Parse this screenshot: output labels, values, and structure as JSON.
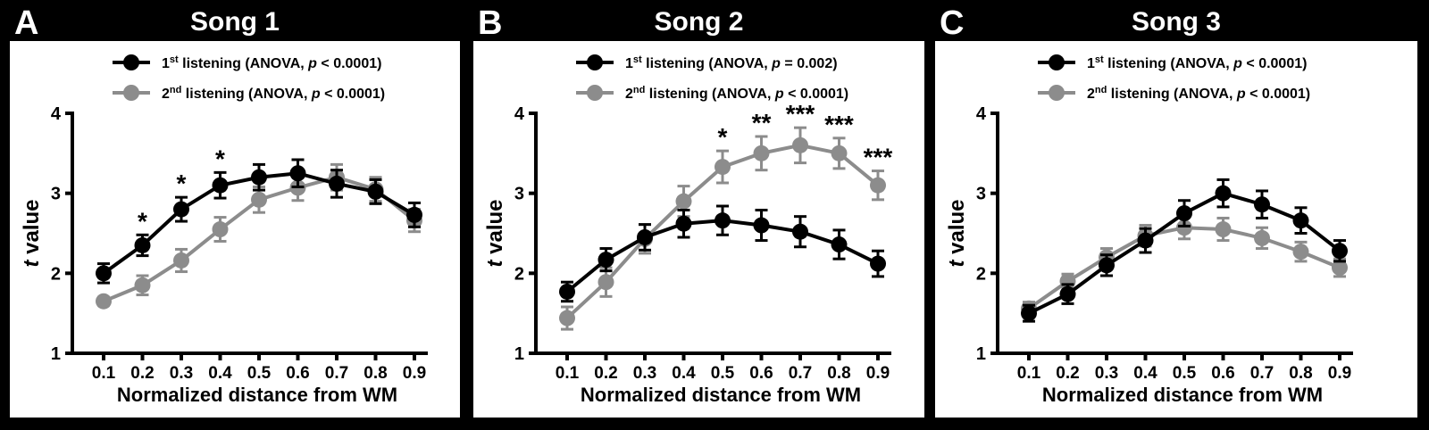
{
  "colors": {
    "background": "#000000",
    "panel": "#ffffff",
    "series1": "#000000",
    "series2": "#8c8c8c"
  },
  "chart_data": [
    {
      "type": "line",
      "panel_letter": "A",
      "title": "Song 1",
      "xlabel": "Normalized distance from WM",
      "ylabel_italic": "t",
      "ylabel_rest": " value",
      "ylim": [
        1,
        4
      ],
      "yticks": [
        "1",
        "2",
        "3",
        "4"
      ],
      "categories": [
        "0.1",
        "0.2",
        "0.3",
        "0.4",
        "0.5",
        "0.6",
        "0.7",
        "0.8",
        "0.9"
      ],
      "series": [
        {
          "name": "1st listening",
          "ord": "st",
          "legend_pre": "1",
          "legend_text": " listening (ANOVA, ",
          "p_label": "p",
          "p_value": " < 0.0001)",
          "values": [
            2.0,
            2.35,
            2.8,
            3.1,
            3.2,
            3.25,
            3.12,
            3.02,
            2.73
          ],
          "errors": [
            0.12,
            0.13,
            0.15,
            0.16,
            0.16,
            0.17,
            0.17,
            0.15,
            0.15
          ]
        },
        {
          "name": "2nd listening",
          "ord": "nd",
          "legend_pre": "2",
          "legend_text": " listening (ANOVA, ",
          "p_label": "p",
          "p_value": " < 0.0001)",
          "values": [
            1.65,
            1.85,
            2.16,
            2.55,
            2.92,
            3.07,
            3.2,
            3.05,
            2.66
          ],
          "errors": [
            0.05,
            0.12,
            0.14,
            0.15,
            0.16,
            0.16,
            0.16,
            0.15,
            0.14
          ]
        }
      ],
      "annotations": [
        "",
        "*",
        "*",
        "*",
        "",
        "",
        "",
        "",
        ""
      ]
    },
    {
      "type": "line",
      "panel_letter": "B",
      "title": "Song 2",
      "xlabel": "Normalized distance from WM",
      "ylabel_italic": "t",
      "ylabel_rest": " value",
      "ylim": [
        1,
        4
      ],
      "yticks": [
        "1",
        "2",
        "3",
        "4"
      ],
      "categories": [
        "0.1",
        "0.2",
        "0.3",
        "0.4",
        "0.5",
        "0.6",
        "0.7",
        "0.8",
        "0.9"
      ],
      "series": [
        {
          "name": "1st listening",
          "ord": "st",
          "legend_pre": "1",
          "legend_text": " listening (ANOVA, ",
          "p_label": "p",
          "p_value": " = 0.002)",
          "values": [
            1.77,
            2.17,
            2.45,
            2.62,
            2.66,
            2.6,
            2.52,
            2.36,
            2.12
          ],
          "errors": [
            0.12,
            0.14,
            0.16,
            0.17,
            0.18,
            0.19,
            0.19,
            0.18,
            0.16
          ]
        },
        {
          "name": "2nd listening",
          "ord": "nd",
          "legend_pre": "2",
          "legend_text": " listening (ANOVA, ",
          "p_label": "p",
          "p_value": " < 0.0001)",
          "values": [
            1.44,
            1.89,
            2.43,
            2.9,
            3.33,
            3.5,
            3.6,
            3.5,
            3.1
          ],
          "errors": [
            0.14,
            0.18,
            0.18,
            0.19,
            0.2,
            0.21,
            0.22,
            0.19,
            0.18
          ]
        }
      ],
      "annotations": [
        "",
        "",
        "",
        "",
        "*",
        "**",
        "***",
        "***",
        "***"
      ]
    },
    {
      "type": "line",
      "panel_letter": "C",
      "title": "Song 3",
      "xlabel": "Normalized distance from WM",
      "ylabel_italic": "t",
      "ylabel_rest": " value",
      "ylim": [
        1,
        4
      ],
      "yticks": [
        "1",
        "2",
        "3",
        "4"
      ],
      "categories": [
        "0.1",
        "0.2",
        "0.3",
        "0.4",
        "0.5",
        "0.6",
        "0.7",
        "0.8",
        "0.9"
      ],
      "series": [
        {
          "name": "1st listening",
          "ord": "st",
          "legend_pre": "1",
          "legend_text": " listening (ANOVA, ",
          "p_label": "p",
          "p_value": " < 0.0001)",
          "values": [
            1.5,
            1.74,
            2.1,
            2.41,
            2.75,
            3.0,
            2.86,
            2.66,
            2.28
          ],
          "errors": [
            0.1,
            0.12,
            0.13,
            0.15,
            0.16,
            0.17,
            0.17,
            0.16,
            0.13
          ]
        },
        {
          "name": "2nd listening",
          "ord": "nd",
          "legend_pre": "2",
          "legend_text": " listening (ANOVA, ",
          "p_label": "p",
          "p_value": " < 0.0001)",
          "values": [
            1.56,
            1.9,
            2.2,
            2.47,
            2.57,
            2.55,
            2.44,
            2.27,
            2.07
          ],
          "errors": [
            0.08,
            0.09,
            0.11,
            0.13,
            0.14,
            0.14,
            0.13,
            0.12,
            0.11
          ]
        }
      ],
      "annotations": [
        "",
        "",
        "",
        "",
        "",
        "",
        "",
        "",
        ""
      ]
    }
  ]
}
